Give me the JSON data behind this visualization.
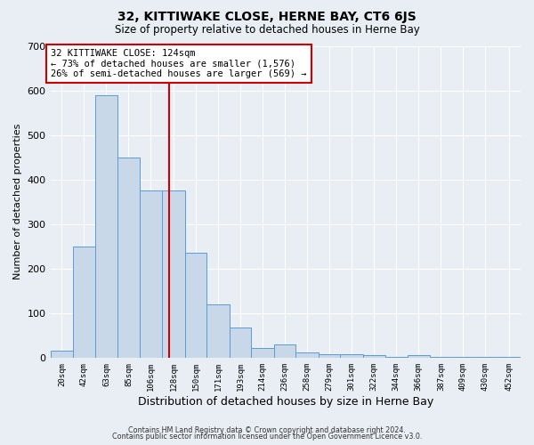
{
  "title": "32, KITTIWAKE CLOSE, HERNE BAY, CT6 6JS",
  "subtitle": "Size of property relative to detached houses in Herne Bay",
  "xlabel": "Distribution of detached houses by size in Herne Bay",
  "ylabel": "Number of detached properties",
  "bin_labels": [
    "20sqm",
    "42sqm",
    "63sqm",
    "85sqm",
    "106sqm",
    "128sqm",
    "150sqm",
    "171sqm",
    "193sqm",
    "214sqm",
    "236sqm",
    "258sqm",
    "279sqm",
    "301sqm",
    "322sqm",
    "344sqm",
    "366sqm",
    "387sqm",
    "409sqm",
    "430sqm",
    "452sqm"
  ],
  "bar_heights": [
    15,
    250,
    590,
    450,
    375,
    375,
    235,
    120,
    68,
    22,
    30,
    12,
    8,
    8,
    6,
    2,
    5,
    2,
    1,
    1,
    2
  ],
  "bin_edges": [
    9,
    31,
    52,
    74,
    95,
    117,
    139,
    160,
    182,
    203,
    225,
    246,
    268,
    289,
    311,
    332,
    354,
    375,
    397,
    418,
    440,
    463
  ],
  "property_size": 124,
  "property_label": "32 KITTIWAKE CLOSE: 124sqm",
  "annotation_line1": "← 73% of detached houses are smaller (1,576)",
  "annotation_line2": "26% of semi-detached houses are larger (569) →",
  "bar_color": "#c8d8e8",
  "bar_edge_color": "#5b9bd5",
  "vline_color": "#cc0000",
  "annotation_box_color": "#cc0000",
  "background_color": "#e8eef4",
  "grid_color": "#ffffff",
  "ylim": [
    0,
    700
  ],
  "yticks": [
    0,
    100,
    200,
    300,
    400,
    500,
    600,
    700
  ],
  "footer_line1": "Contains HM Land Registry data © Crown copyright and database right 2024.",
  "footer_line2": "Contains public sector information licensed under the Open Government Licence v3.0."
}
